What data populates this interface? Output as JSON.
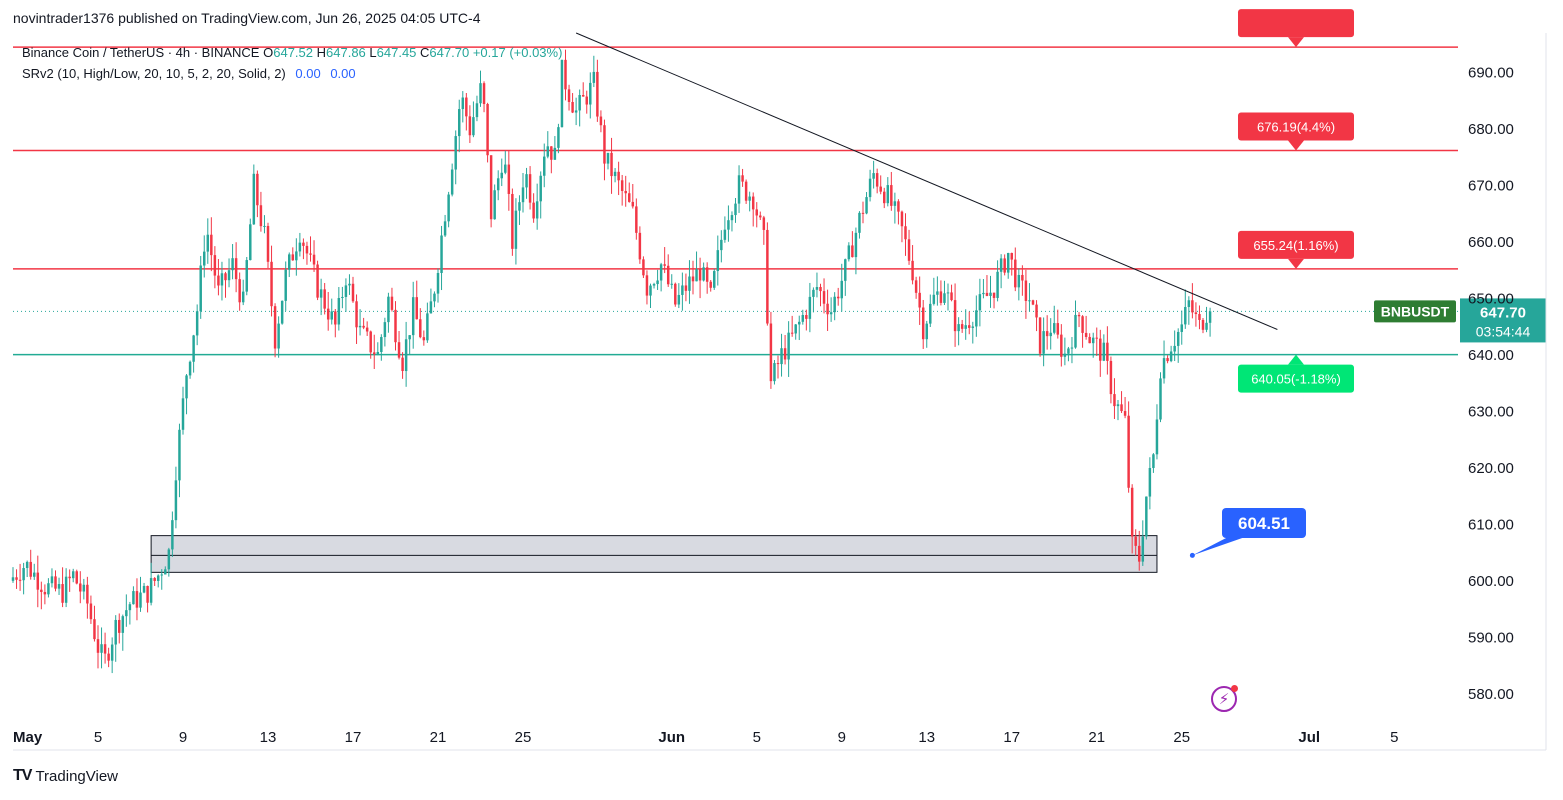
{
  "header": {
    "publish_line": "novintrader1376 published on TradingView.com, Jun 26, 2025 04:05 UTC-4"
  },
  "legend": {
    "symbol": "Binance Coin / TetherUS · 4h · BINANCE",
    "o_label": "O",
    "o_value": "647.52",
    "h_label": "H",
    "h_value": "647.86",
    "l_label": "L",
    "l_value": "647.45",
    "c_label": "C",
    "c_value": "647.70",
    "change": "+0.17 (+0.03%)",
    "indicator": "SRv2 (10, High/Low, 20, 10, 5, 2, 20, Solid, 2)",
    "ind_value_1": "0.00",
    "ind_value_2": "0.00"
  },
  "footer": {
    "brand": "TradingView",
    "mark": "TV"
  },
  "colors": {
    "up": "#26a69a",
    "down": "#f23645",
    "support": "#22ab94",
    "resistance": "#f23645",
    "callout": "#2962ff",
    "price_tag": "#26a69a",
    "symbol_tag": "#2e7d32"
  },
  "icons": {
    "bolt": "lightning-bolt-icon"
  },
  "chart_data": {
    "type": "candlestick",
    "symbol": "BNBUSDT",
    "timeframe": "4h",
    "ylim": [
      575,
      697
    ],
    "y_ticks": [
      580,
      590,
      600,
      610,
      620,
      630,
      640,
      650,
      660,
      670,
      680,
      690
    ],
    "y_tick_labels": [
      "580.00",
      "590.00",
      "600.00",
      "610.00",
      "620.00",
      "630.00",
      "640.00",
      "650.00",
      "660.00",
      "670.00",
      "680.00",
      "690.00"
    ],
    "x_axis": {
      "start": "2025-05-01",
      "end": "2025-07-08",
      "ticks": [
        {
          "date": "2025-05-01",
          "label": "May",
          "bold": true
        },
        {
          "date": "2025-05-05",
          "label": "5"
        },
        {
          "date": "2025-05-09",
          "label": "9"
        },
        {
          "date": "2025-05-13",
          "label": "13"
        },
        {
          "date": "2025-05-17",
          "label": "17"
        },
        {
          "date": "2025-05-21",
          "label": "21"
        },
        {
          "date": "2025-05-25",
          "label": "25"
        },
        {
          "date": "2025-06-01",
          "label": "Jun",
          "bold": true
        },
        {
          "date": "2025-06-05",
          "label": "5"
        },
        {
          "date": "2025-06-09",
          "label": "9"
        },
        {
          "date": "2025-06-13",
          "label": "13"
        },
        {
          "date": "2025-06-17",
          "label": "17"
        },
        {
          "date": "2025-06-21",
          "label": "21"
        },
        {
          "date": "2025-06-25",
          "label": "25"
        },
        {
          "date": "2025-07-01",
          "label": "Jul",
          "bold": true
        },
        {
          "date": "2025-07-05",
          "label": "5"
        }
      ]
    },
    "price_path": [
      {
        "t": "2025-05-01T00:00",
        "p": 600
      },
      {
        "t": "2025-05-01T18:00",
        "p": 603
      },
      {
        "t": "2025-05-02T16:00",
        "p": 599
      },
      {
        "t": "2025-05-03T12:00",
        "p": 598
      },
      {
        "t": "2025-05-04T00:00",
        "p": 601
      },
      {
        "t": "2025-05-04T16:00",
        "p": 596
      },
      {
        "t": "2025-05-05T06:00",
        "p": 587
      },
      {
        "t": "2025-05-05T12:00",
        "p": 586
      },
      {
        "t": "2025-05-06T00:00",
        "p": 592
      },
      {
        "t": "2025-05-06T16:00",
        "p": 596
      },
      {
        "t": "2025-05-07T12:00",
        "p": 598
      },
      {
        "t": "2025-05-08T00:00",
        "p": 601
      },
      {
        "t": "2025-05-08T12:00",
        "p": 605
      },
      {
        "t": "2025-05-08T20:00",
        "p": 620
      },
      {
        "t": "2025-05-09T08:00",
        "p": 637
      },
      {
        "t": "2025-05-09T20:00",
        "p": 648
      },
      {
        "t": "2025-05-10T06:00",
        "p": 663
      },
      {
        "t": "2025-05-10T20:00",
        "p": 651
      },
      {
        "t": "2025-05-11T12:00",
        "p": 656
      },
      {
        "t": "2025-05-12T00:00",
        "p": 649
      },
      {
        "t": "2025-05-12T12:00",
        "p": 670
      },
      {
        "t": "2025-05-13T00:00",
        "p": 661
      },
      {
        "t": "2025-05-13T12:00",
        "p": 643
      },
      {
        "t": "2025-05-14T00:00",
        "p": 654
      },
      {
        "t": "2025-05-14T16:00",
        "p": 662
      },
      {
        "t": "2025-05-15T12:00",
        "p": 652
      },
      {
        "t": "2025-05-16T08:00",
        "p": 645
      },
      {
        "t": "2025-05-16T20:00",
        "p": 654
      },
      {
        "t": "2025-05-17T12:00",
        "p": 644
      },
      {
        "t": "2025-05-18T08:00",
        "p": 640
      },
      {
        "t": "2025-05-18T20:00",
        "p": 650
      },
      {
        "t": "2025-05-19T12:00",
        "p": 639
      },
      {
        "t": "2025-05-20T00:00",
        "p": 648
      },
      {
        "t": "2025-05-20T12:00",
        "p": 642
      },
      {
        "t": "2025-05-21T00:00",
        "p": 652
      },
      {
        "t": "2025-05-21T16:00",
        "p": 670
      },
      {
        "t": "2025-05-22T06:00",
        "p": 686
      },
      {
        "t": "2025-05-22T16:00",
        "p": 680
      },
      {
        "t": "2025-05-23T06:00",
        "p": 688
      },
      {
        "t": "2025-05-23T16:00",
        "p": 665
      },
      {
        "t": "2025-05-24T06:00",
        "p": 676
      },
      {
        "t": "2025-05-24T16:00",
        "p": 660
      },
      {
        "t": "2025-05-25T06:00",
        "p": 673
      },
      {
        "t": "2025-05-25T16:00",
        "p": 666
      },
      {
        "t": "2025-05-26T06:00",
        "p": 678
      },
      {
        "t": "2025-05-26T16:00",
        "p": 675
      },
      {
        "t": "2025-05-27T00:00",
        "p": 690
      },
      {
        "t": "2025-05-27T16:00",
        "p": 683
      },
      {
        "t": "2025-05-28T12:00",
        "p": 688
      },
      {
        "t": "2025-05-29T00:00",
        "p": 675
      },
      {
        "t": "2025-05-29T16:00",
        "p": 670
      },
      {
        "t": "2025-05-30T08:00",
        "p": 665
      },
      {
        "t": "2025-05-31T00:00",
        "p": 652
      },
      {
        "t": "2025-05-31T16:00",
        "p": 656
      },
      {
        "t": "2025-06-01T08:00",
        "p": 649
      },
      {
        "t": "2025-06-01T20:00",
        "p": 652
      },
      {
        "t": "2025-06-02T12:00",
        "p": 655
      },
      {
        "t": "2025-06-03T00:00",
        "p": 650
      },
      {
        "t": "2025-06-03T16:00",
        "p": 664
      },
      {
        "t": "2025-06-04T08:00",
        "p": 670
      },
      {
        "t": "2025-06-05T00:00",
        "p": 668
      },
      {
        "t": "2025-06-05T12:00",
        "p": 660
      },
      {
        "t": "2025-06-05T20:00",
        "p": 635
      },
      {
        "t": "2025-06-06T08:00",
        "p": 640
      },
      {
        "t": "2025-06-06T20:00",
        "p": 643
      },
      {
        "t": "2025-06-07T12:00",
        "p": 648
      },
      {
        "t": "2025-06-08T00:00",
        "p": 652
      },
      {
        "t": "2025-06-08T16:00",
        "p": 648
      },
      {
        "t": "2025-06-09T08:00",
        "p": 655
      },
      {
        "t": "2025-06-10T00:00",
        "p": 664
      },
      {
        "t": "2025-06-10T16:00",
        "p": 672
      },
      {
        "t": "2025-06-11T08:00",
        "p": 668
      },
      {
        "t": "2025-06-12T00:00",
        "p": 662
      },
      {
        "t": "2025-06-12T12:00",
        "p": 655
      },
      {
        "t": "2025-06-13T00:00",
        "p": 645
      },
      {
        "t": "2025-06-13T12:00",
        "p": 650
      },
      {
        "t": "2025-06-14T00:00",
        "p": 652
      },
      {
        "t": "2025-06-14T16:00",
        "p": 644
      },
      {
        "t": "2025-06-15T12:00",
        "p": 648
      },
      {
        "t": "2025-06-16T08:00",
        "p": 652
      },
      {
        "t": "2025-06-17T00:00",
        "p": 658
      },
      {
        "t": "2025-06-17T12:00",
        "p": 652
      },
      {
        "t": "2025-06-18T00:00",
        "p": 650
      },
      {
        "t": "2025-06-18T12:00",
        "p": 642
      },
      {
        "t": "2025-06-19T00:00",
        "p": 645
      },
      {
        "t": "2025-06-19T16:00",
        "p": 640
      },
      {
        "t": "2025-06-20T08:00",
        "p": 647
      },
      {
        "t": "2025-06-20T20:00",
        "p": 643
      },
      {
        "t": "2025-06-21T12:00",
        "p": 640
      },
      {
        "t": "2025-06-22T00:00",
        "p": 632
      },
      {
        "t": "2025-06-22T12:00",
        "p": 628
      },
      {
        "t": "2025-06-22T20:00",
        "p": 606
      },
      {
        "t": "2025-06-23T04:00",
        "p": 604
      },
      {
        "t": "2025-06-23T12:00",
        "p": 615
      },
      {
        "t": "2025-06-23T20:00",
        "p": 622
      },
      {
        "t": "2025-06-24T04:00",
        "p": 638
      },
      {
        "t": "2025-06-24T16:00",
        "p": 642
      },
      {
        "t": "2025-06-25T04:00",
        "p": 645
      },
      {
        "t": "2025-06-25T12:00",
        "p": 649
      },
      {
        "t": "2025-06-26T00:00",
        "p": 645
      },
      {
        "t": "2025-06-26T08:00",
        "p": 647.7
      }
    ],
    "levels": [
      {
        "name": "resistance-top",
        "price": 694.5,
        "color": "#f23645",
        "label": ""
      },
      {
        "name": "resistance-676",
        "price": 676.19,
        "color": "#f23645",
        "label": "676.19(4.4%)"
      },
      {
        "name": "resistance-655",
        "price": 655.24,
        "color": "#f23645",
        "label": "655.24(1.16%)"
      },
      {
        "name": "support-640",
        "price": 640.05,
        "color": "#22ab94",
        "label": "640.05(-1.18%)"
      }
    ],
    "demand_zone": {
      "start": "2025-05-07T12:00",
      "end": "2025-06-23T20:00",
      "low": 601.5,
      "high": 608,
      "mid": 604.5
    },
    "trendline": [
      {
        "t": "2025-05-27T12:00",
        "p": 697
      },
      {
        "t": "2025-06-29T12:00",
        "p": 644.5
      }
    ],
    "callout": {
      "label": "604.51",
      "t": "2025-06-25T12:00",
      "p": 609.5,
      "anchor_t": "2025-06-25T12:00",
      "anchor_p": 604.51
    },
    "last_price": {
      "value": "647.70",
      "countdown": "03:54:44",
      "symbol": "BNBUSDT",
      "price": 647.7
    }
  }
}
